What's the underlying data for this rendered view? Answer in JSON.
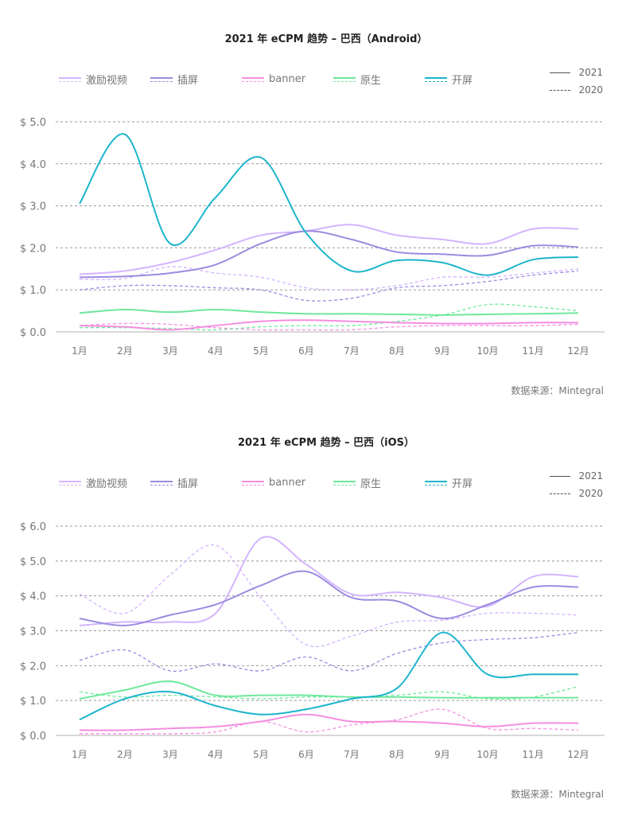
{
  "chart_data": [
    {
      "type": "line",
      "title": "2021 年 eCPM 趋势 – 巴西（Android）",
      "ylim": [
        0,
        5
      ],
      "yticks": [
        "$ 0.0",
        "$ 1.0",
        "$ 2.0",
        "$ 3.0",
        "$ 4.0",
        "$ 5.0"
      ],
      "categories": [
        "1月",
        "2月",
        "3月",
        "4月",
        "5月",
        "6月",
        "7月",
        "8月",
        "9月",
        "10月",
        "11月",
        "12月"
      ],
      "legend_years": [
        "2021",
        "2020"
      ],
      "source": "数据来源：Mintegral",
      "series": [
        {
          "name": "激励视频",
          "color": "#d4b4ff",
          "v2021": [
            1.37,
            1.45,
            1.65,
            1.95,
            2.3,
            2.4,
            2.55,
            2.3,
            2.2,
            2.1,
            2.45,
            2.45
          ],
          "v2020": [
            1.25,
            1.27,
            1.55,
            1.4,
            1.3,
            1.05,
            1.0,
            1.1,
            1.3,
            1.3,
            1.4,
            1.5
          ]
        },
        {
          "name": "插屏",
          "color": "#9b8ce0",
          "v2021": [
            1.3,
            1.32,
            1.4,
            1.6,
            2.1,
            2.4,
            2.2,
            1.9,
            1.85,
            1.82,
            2.05,
            2.02
          ],
          "v2020": [
            1.0,
            1.1,
            1.1,
            1.05,
            1.0,
            0.75,
            0.8,
            1.05,
            1.1,
            1.2,
            1.35,
            1.45
          ]
        },
        {
          "name": "banner",
          "color": "#f58ee0",
          "v2021": [
            0.15,
            0.12,
            0.05,
            0.15,
            0.25,
            0.28,
            0.25,
            0.22,
            0.2,
            0.2,
            0.22,
            0.22
          ],
          "v2020": [
            0.15,
            0.2,
            0.18,
            0.1,
            0.05,
            0.05,
            0.05,
            0.12,
            0.15,
            0.15,
            0.15,
            0.18
          ]
        },
        {
          "name": "原生",
          "color": "#6ee89a",
          "v2021": [
            0.45,
            0.53,
            0.47,
            0.53,
            0.47,
            0.43,
            0.43,
            0.42,
            0.4,
            0.42,
            0.43,
            0.45
          ],
          "v2020": [
            0.1,
            0.1,
            0.08,
            0.05,
            0.12,
            0.15,
            0.15,
            0.25,
            0.4,
            0.65,
            0.6,
            0.5
          ]
        },
        {
          "name": "开屏",
          "color": "#1cb5cc",
          "v2021": [
            3.05,
            4.7,
            2.1,
            3.2,
            4.15,
            2.35,
            1.45,
            1.7,
            1.65,
            1.35,
            1.72,
            1.78
          ],
          "v2020": null
        }
      ]
    },
    {
      "type": "line",
      "title": "2021 年 eCPM 趋势 – 巴西（iOS）",
      "ylim": [
        0,
        6
      ],
      "yticks": [
        "$ 0.0",
        "$ 1.0",
        "$ 2.0",
        "$ 3.0",
        "$ 4.0",
        "$ 5.0",
        "$ 6.0"
      ],
      "categories": [
        "1月",
        "2月",
        "3月",
        "4月",
        "5月",
        "6月",
        "7月",
        "8月",
        "9月",
        "10月",
        "11月",
        "12月"
      ],
      "legend_years": [
        "2021",
        "2020"
      ],
      "source": "数据来源：Mintegral",
      "series": [
        {
          "name": "激励视频",
          "color": "#d4b4ff",
          "v2021": [
            3.15,
            3.25,
            3.25,
            3.5,
            5.65,
            4.9,
            4.05,
            4.1,
            3.95,
            3.7,
            4.55,
            4.55
          ],
          "v2020": [
            4.05,
            3.5,
            4.6,
            5.45,
            3.95,
            2.6,
            2.85,
            3.25,
            3.3,
            3.5,
            3.5,
            3.45
          ]
        },
        {
          "name": "插屏",
          "color": "#9b8ce0",
          "v2021": [
            3.35,
            3.15,
            3.45,
            3.75,
            4.3,
            4.7,
            3.95,
            3.85,
            3.35,
            3.75,
            4.25,
            4.25
          ],
          "v2020": [
            2.15,
            2.45,
            1.85,
            2.05,
            1.85,
            2.25,
            1.85,
            2.35,
            2.65,
            2.75,
            2.8,
            2.95
          ]
        },
        {
          "name": "banner",
          "color": "#f58ee0",
          "v2021": [
            0.15,
            0.15,
            0.2,
            0.25,
            0.4,
            0.6,
            0.4,
            0.4,
            0.35,
            0.25,
            0.35,
            0.35
          ],
          "v2020": [
            0.05,
            0.05,
            0.05,
            0.1,
            0.4,
            0.1,
            0.3,
            0.45,
            0.75,
            0.2,
            0.2,
            0.15
          ]
        },
        {
          "name": "原生",
          "color": "#6ee89a",
          "v2021": [
            1.05,
            1.3,
            1.55,
            1.15,
            1.15,
            1.15,
            1.1,
            1.1,
            1.08,
            1.08,
            1.08,
            1.08
          ],
          "v2020": [
            1.25,
            1.1,
            1.15,
            1.1,
            1.05,
            1.1,
            1.1,
            1.15,
            1.25,
            1.05,
            1.1,
            1.4
          ]
        },
        {
          "name": "开屏",
          "color": "#1cb5cc",
          "v2021": [
            0.45,
            1.05,
            1.25,
            0.85,
            0.6,
            0.75,
            1.05,
            1.35,
            2.95,
            1.75,
            1.75,
            1.75
          ],
          "v2020": null
        }
      ]
    }
  ]
}
